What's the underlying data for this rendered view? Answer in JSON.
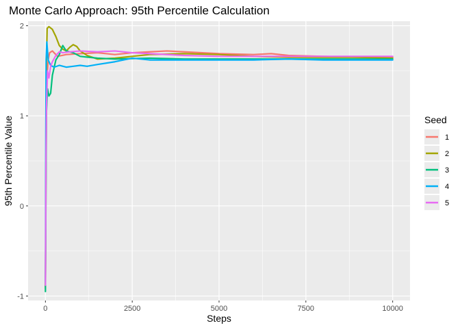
{
  "chart_data": {
    "type": "line",
    "title": "Monte Carlo Approach: 95th Percentile Calculation",
    "xlabel": "Steps",
    "ylabel": "95th Percentile Value",
    "xlim": [
      -500,
      10500
    ],
    "ylim": [
      -1.05,
      2.05
    ],
    "x_ticks": [
      0,
      2500,
      5000,
      7500,
      10000
    ],
    "x_tick_labels": [
      "0",
      "2500",
      "5000",
      "7500",
      "10000"
    ],
    "y_ticks": [
      -1,
      0,
      1,
      2
    ],
    "y_tick_labels": [
      "-1",
      "0",
      "1",
      "2"
    ],
    "grid": true,
    "legend": {
      "title": "Seed",
      "position": "right"
    },
    "series": [
      {
        "name": "1",
        "color": "#F8766D",
        "points": [
          [
            0,
            -0.92
          ],
          [
            15,
            0.3
          ],
          [
            30,
            1.15
          ],
          [
            50,
            1.45
          ],
          [
            80,
            1.62
          ],
          [
            120,
            1.7
          ],
          [
            200,
            1.72
          ],
          [
            350,
            1.66
          ],
          [
            600,
            1.68
          ],
          [
            1000,
            1.69
          ],
          [
            1500,
            1.7
          ],
          [
            2000,
            1.68
          ],
          [
            2500,
            1.7
          ],
          [
            3000,
            1.71
          ],
          [
            3500,
            1.72
          ],
          [
            4000,
            1.71
          ],
          [
            5000,
            1.69
          ],
          [
            6000,
            1.68
          ],
          [
            6500,
            1.69
          ],
          [
            7000,
            1.67
          ],
          [
            8000,
            1.66
          ],
          [
            9000,
            1.65
          ],
          [
            10000,
            1.65
          ]
        ]
      },
      {
        "name": "2",
        "color": "#A3A500",
        "points": [
          [
            0,
            -0.9
          ],
          [
            15,
            0.6
          ],
          [
            30,
            1.6
          ],
          [
            50,
            1.97
          ],
          [
            100,
            1.99
          ],
          [
            200,
            1.96
          ],
          [
            300,
            1.88
          ],
          [
            400,
            1.78
          ],
          [
            500,
            1.74
          ],
          [
            600,
            1.72
          ],
          [
            700,
            1.76
          ],
          [
            800,
            1.79
          ],
          [
            900,
            1.77
          ],
          [
            1000,
            1.72
          ],
          [
            1200,
            1.67
          ],
          [
            1500,
            1.63
          ],
          [
            2000,
            1.64
          ],
          [
            2500,
            1.66
          ],
          [
            3000,
            1.68
          ],
          [
            4000,
            1.69
          ],
          [
            5000,
            1.68
          ],
          [
            6000,
            1.66
          ],
          [
            7000,
            1.65
          ],
          [
            8000,
            1.65
          ],
          [
            9000,
            1.65
          ],
          [
            10000,
            1.64
          ]
        ]
      },
      {
        "name": "3",
        "color": "#00BF7D",
        "points": [
          [
            0,
            -0.95
          ],
          [
            15,
            0.2
          ],
          [
            30,
            1.05
          ],
          [
            60,
            1.3
          ],
          [
            100,
            1.22
          ],
          [
            150,
            1.25
          ],
          [
            200,
            1.45
          ],
          [
            300,
            1.62
          ],
          [
            400,
            1.68
          ],
          [
            500,
            1.78
          ],
          [
            600,
            1.72
          ],
          [
            800,
            1.7
          ],
          [
            1000,
            1.66
          ],
          [
            1500,
            1.64
          ],
          [
            2000,
            1.63
          ],
          [
            3000,
            1.64
          ],
          [
            4000,
            1.63
          ],
          [
            5000,
            1.63
          ],
          [
            6000,
            1.63
          ],
          [
            7000,
            1.63
          ],
          [
            8000,
            1.63
          ],
          [
            9000,
            1.63
          ],
          [
            10000,
            1.63
          ]
        ]
      },
      {
        "name": "4",
        "color": "#00B0F6",
        "points": [
          [
            0,
            -0.85
          ],
          [
            10,
            0.8
          ],
          [
            20,
            1.62
          ],
          [
            40,
            1.82
          ],
          [
            80,
            1.62
          ],
          [
            150,
            1.56
          ],
          [
            250,
            1.54
          ],
          [
            400,
            1.56
          ],
          [
            600,
            1.54
          ],
          [
            800,
            1.55
          ],
          [
            1000,
            1.56
          ],
          [
            1200,
            1.55
          ],
          [
            1500,
            1.57
          ],
          [
            2000,
            1.6
          ],
          [
            2500,
            1.64
          ],
          [
            3000,
            1.62
          ],
          [
            4000,
            1.62
          ],
          [
            5000,
            1.62
          ],
          [
            6000,
            1.62
          ],
          [
            7000,
            1.63
          ],
          [
            8000,
            1.62
          ],
          [
            9000,
            1.62
          ],
          [
            10000,
            1.62
          ]
        ]
      },
      {
        "name": "5",
        "color": "#E76BF3",
        "points": [
          [
            0,
            -0.88
          ],
          [
            15,
            0.5
          ],
          [
            30,
            1.1
          ],
          [
            60,
            1.5
          ],
          [
            100,
            1.42
          ],
          [
            150,
            1.55
          ],
          [
            200,
            1.6
          ],
          [
            300,
            1.67
          ],
          [
            400,
            1.71
          ],
          [
            500,
            1.7
          ],
          [
            700,
            1.71
          ],
          [
            1000,
            1.72
          ],
          [
            1500,
            1.71
          ],
          [
            2000,
            1.72
          ],
          [
            2500,
            1.7
          ],
          [
            3000,
            1.69
          ],
          [
            4000,
            1.67
          ],
          [
            5000,
            1.66
          ],
          [
            6000,
            1.66
          ],
          [
            7000,
            1.66
          ],
          [
            8000,
            1.66
          ],
          [
            9000,
            1.66
          ],
          [
            10000,
            1.66
          ]
        ]
      }
    ]
  }
}
